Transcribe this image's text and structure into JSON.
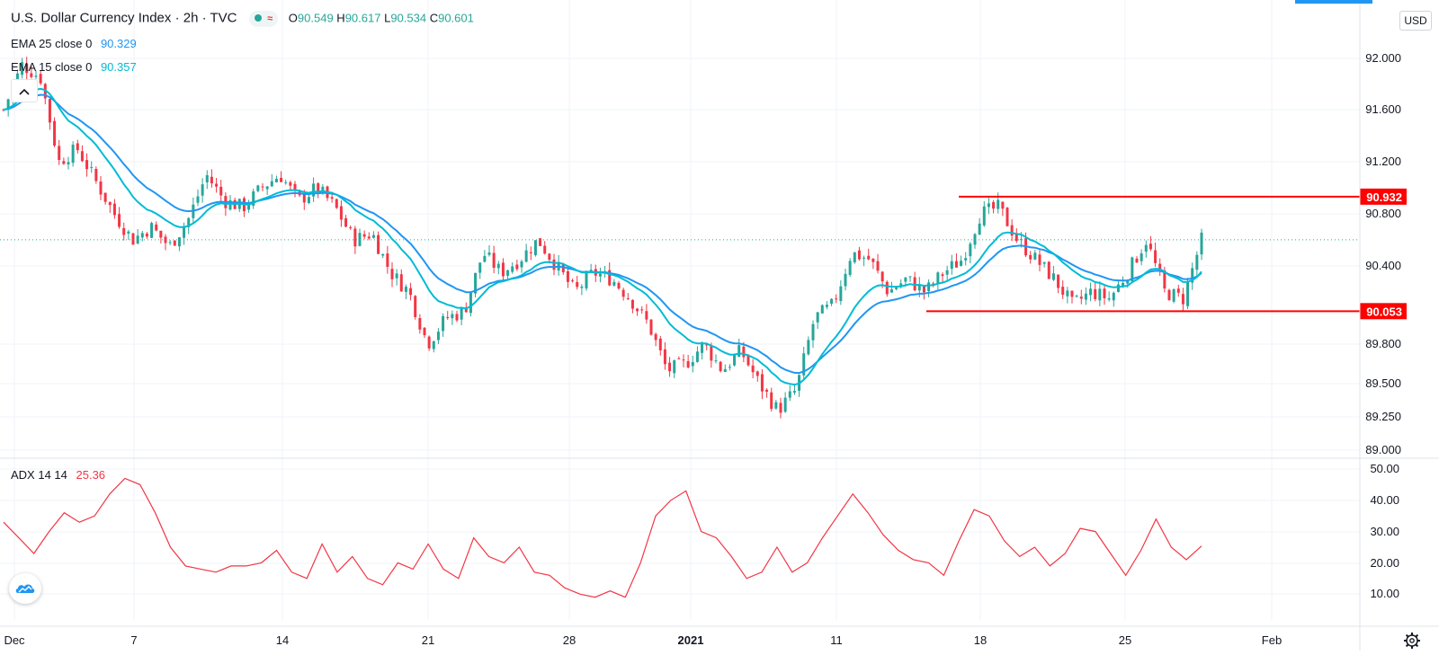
{
  "header": {
    "title": "U.S. Dollar Currency Index · 2h · TVC",
    "ohlc": {
      "o_label": "O",
      "o": "90.549",
      "h_label": "H",
      "h": "90.617",
      "l_label": "L",
      "l": "90.534",
      "c_label": "C",
      "c": "90.601"
    },
    "ema25": {
      "label": "EMA 25 close 0",
      "value": "90.329"
    },
    "ema15": {
      "label": "EMA 15 close 0",
      "value": "90.357"
    },
    "currency_button": "USD"
  },
  "adx": {
    "label": "ADX 14 14",
    "value": "25.36"
  },
  "icons": {
    "collapse": "chevron-up-icon",
    "logo": "tradingview-cloud-icon",
    "settings": "gear-icon",
    "market_status": "market-open-dot-icon"
  },
  "colors": {
    "up": "#26a69a",
    "down": "#f23645",
    "ema25": "#2196f3",
    "ema15": "#00bcd4",
    "adx": "#f23645",
    "level_line": "#ff0000",
    "grid": "#f0f3fa"
  },
  "chart_data": [
    {
      "type": "candlestick",
      "title": "U.S. Dollar Currency Index · 2h · TVC",
      "x_ticks": [
        "Dec",
        "7",
        "14",
        "21",
        "28",
        "2021",
        "11",
        "18",
        "25",
        "Feb"
      ],
      "y_ticks": [
        "92.000",
        "91.600",
        "91.200",
        "90.800",
        "90.400",
        "89.800",
        "89.500",
        "89.250",
        "89.000"
      ],
      "ylim": [
        89.0,
        92.0
      ],
      "last_price": 90.601,
      "horizontal_levels": [
        {
          "label": "90.932",
          "value": 90.932
        },
        {
          "label": "90.053",
          "value": 90.053
        }
      ],
      "price_path": [
        [
          0,
          91.6
        ],
        [
          1,
          91.95
        ],
        [
          2,
          91.85
        ],
        [
          3,
          91.2
        ],
        [
          4,
          91.3
        ],
        [
          5,
          91.05
        ],
        [
          6,
          90.8
        ],
        [
          7,
          90.6
        ],
        [
          8,
          90.7
        ],
        [
          9,
          90.55
        ],
        [
          10,
          90.75
        ],
        [
          11,
          91.1
        ],
        [
          12,
          90.9
        ],
        [
          13,
          90.85
        ],
        [
          14,
          91.0
        ],
        [
          15,
          91.1
        ],
        [
          16,
          90.9
        ],
        [
          17,
          91.0
        ],
        [
          18,
          90.85
        ],
        [
          19,
          90.6
        ],
        [
          20,
          90.65
        ],
        [
          21,
          90.35
        ],
        [
          22,
          90.2
        ],
        [
          23,
          89.8
        ],
        [
          24,
          90.0
        ],
        [
          25,
          90.05
        ],
        [
          26,
          90.5
        ],
        [
          27,
          90.35
        ],
        [
          28,
          90.45
        ],
        [
          29,
          90.6
        ],
        [
          30,
          90.4
        ],
        [
          31,
          90.2
        ],
        [
          32,
          90.35
        ],
        [
          33,
          90.3
        ],
        [
          34,
          90.15
        ],
        [
          35,
          89.95
        ],
        [
          36,
          89.6
        ],
        [
          37,
          89.65
        ],
        [
          38,
          89.8
        ],
        [
          39,
          89.6
        ],
        [
          40,
          89.75
        ],
        [
          41,
          89.5
        ],
        [
          42,
          89.3
        ],
        [
          43,
          89.45
        ],
        [
          44,
          90.0
        ],
        [
          45,
          90.1
        ],
        [
          46,
          90.5
        ],
        [
          47,
          90.45
        ],
        [
          48,
          90.2
        ],
        [
          49,
          90.3
        ],
        [
          50,
          90.2
        ],
        [
          51,
          90.35
        ],
        [
          52,
          90.45
        ],
        [
          53,
          90.8
        ],
        [
          54,
          90.85
        ],
        [
          55,
          90.6
        ],
        [
          56,
          90.45
        ],
        [
          57,
          90.3
        ],
        [
          58,
          90.1
        ],
        [
          59,
          90.2
        ],
        [
          60,
          90.15
        ],
        [
          61,
          90.35
        ],
        [
          62,
          90.6
        ],
        [
          63,
          90.2
        ],
        [
          64,
          90.15
        ],
        [
          65,
          90.6
        ]
      ],
      "series": [
        {
          "name": "EMA 25 close 0",
          "last": 90.329
        },
        {
          "name": "EMA 15 close 0",
          "last": 90.357
        }
      ]
    },
    {
      "type": "line",
      "title": "ADX 14 14",
      "y_ticks": [
        "50.00",
        "40.00",
        "30.00",
        "20.00",
        "10.00"
      ],
      "ylim": [
        5,
        52
      ],
      "values": [
        33,
        28,
        23,
        30,
        36,
        33,
        35,
        42,
        47,
        45,
        36,
        25,
        19,
        18,
        17,
        19,
        19,
        20,
        24,
        17,
        15,
        26,
        17,
        22,
        15,
        13,
        20,
        18,
        26,
        18,
        15,
        28,
        22,
        20,
        25,
        17,
        16,
        12,
        10,
        9,
        11,
        9,
        20,
        35,
        40,
        43,
        30,
        28,
        22,
        15,
        17,
        25,
        17,
        20,
        28,
        35,
        42,
        36,
        29,
        24,
        21,
        20,
        16,
        27,
        37,
        35,
        27,
        22,
        25,
        19,
        23,
        31,
        30,
        23,
        16,
        24,
        34,
        25,
        21,
        25.36
      ]
    }
  ]
}
